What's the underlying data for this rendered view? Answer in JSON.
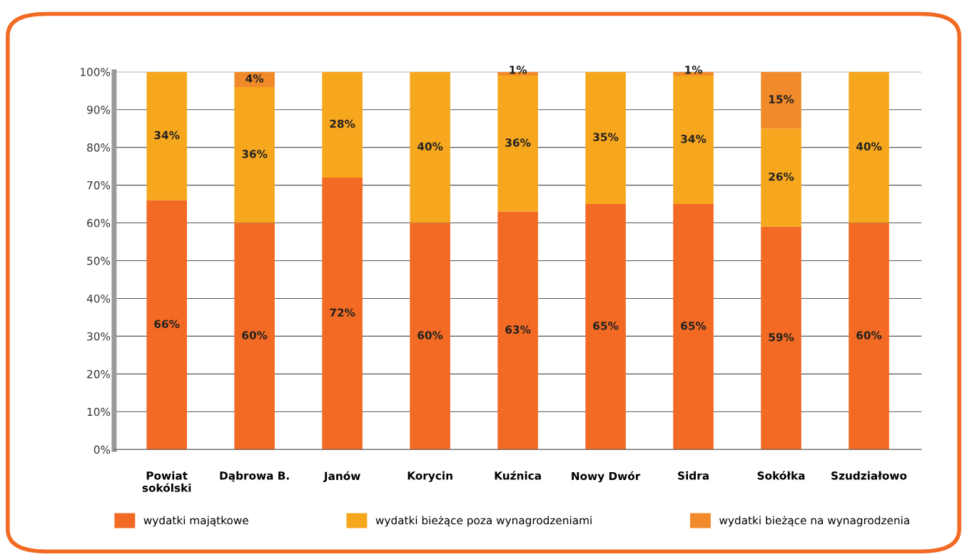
{
  "chart_data": {
    "type": "bar",
    "stacked": true,
    "categories": [
      "Powiat\nsokólski",
      "Dąbrowa B.",
      "Janów",
      "Korycin",
      "Kuźnica",
      "Nowy Dwór",
      "Sidra",
      "Sokółka",
      "Szudziałowo"
    ],
    "series": [
      {
        "name": "wydatki majątkowe",
        "color": "#f26a23",
        "values": [
          66,
          60,
          72,
          60,
          63,
          65,
          65,
          59,
          60
        ],
        "value_labels": [
          "66%",
          "60%",
          "72%",
          "60%",
          "63%",
          "65%",
          "65%",
          "59%",
          "60%"
        ]
      },
      {
        "name": "wydatki bieżące poza wynagrodzeniami",
        "color": "#f7a71e",
        "values": [
          34,
          36,
          28,
          40,
          36,
          35,
          34,
          26,
          40
        ],
        "value_labels": [
          "34%",
          "36%",
          "28%",
          "40%",
          "36%",
          "35%",
          "34%",
          "26%",
          "40%"
        ]
      },
      {
        "name": "wydatki bieżące na wynagrodzenia",
        "color": "#f08a2a",
        "values": [
          null,
          4,
          null,
          null,
          1,
          null,
          1,
          15,
          null
        ],
        "value_labels": [
          null,
          "4%",
          null,
          null,
          "1%",
          null,
          "1%",
          "15%",
          null
        ]
      }
    ],
    "ylim": [
      0,
      100
    ],
    "yticks": [
      {
        "value": 0,
        "label": "0%"
      },
      {
        "value": 10,
        "label": "10%"
      },
      {
        "value": 20,
        "label": "20%"
      },
      {
        "value": 30,
        "label": "30%"
      },
      {
        "value": 40,
        "label": "40%"
      },
      {
        "value": 50,
        "label": "50%"
      },
      {
        "value": 60,
        "label": "60%"
      },
      {
        "value": 70,
        "label": "70%"
      },
      {
        "value": 80,
        "label": "80%"
      },
      {
        "value": 90,
        "label": "90%"
      },
      {
        "value": 100,
        "label": "100%"
      }
    ],
    "grid": "y",
    "legend": "bottom"
  }
}
